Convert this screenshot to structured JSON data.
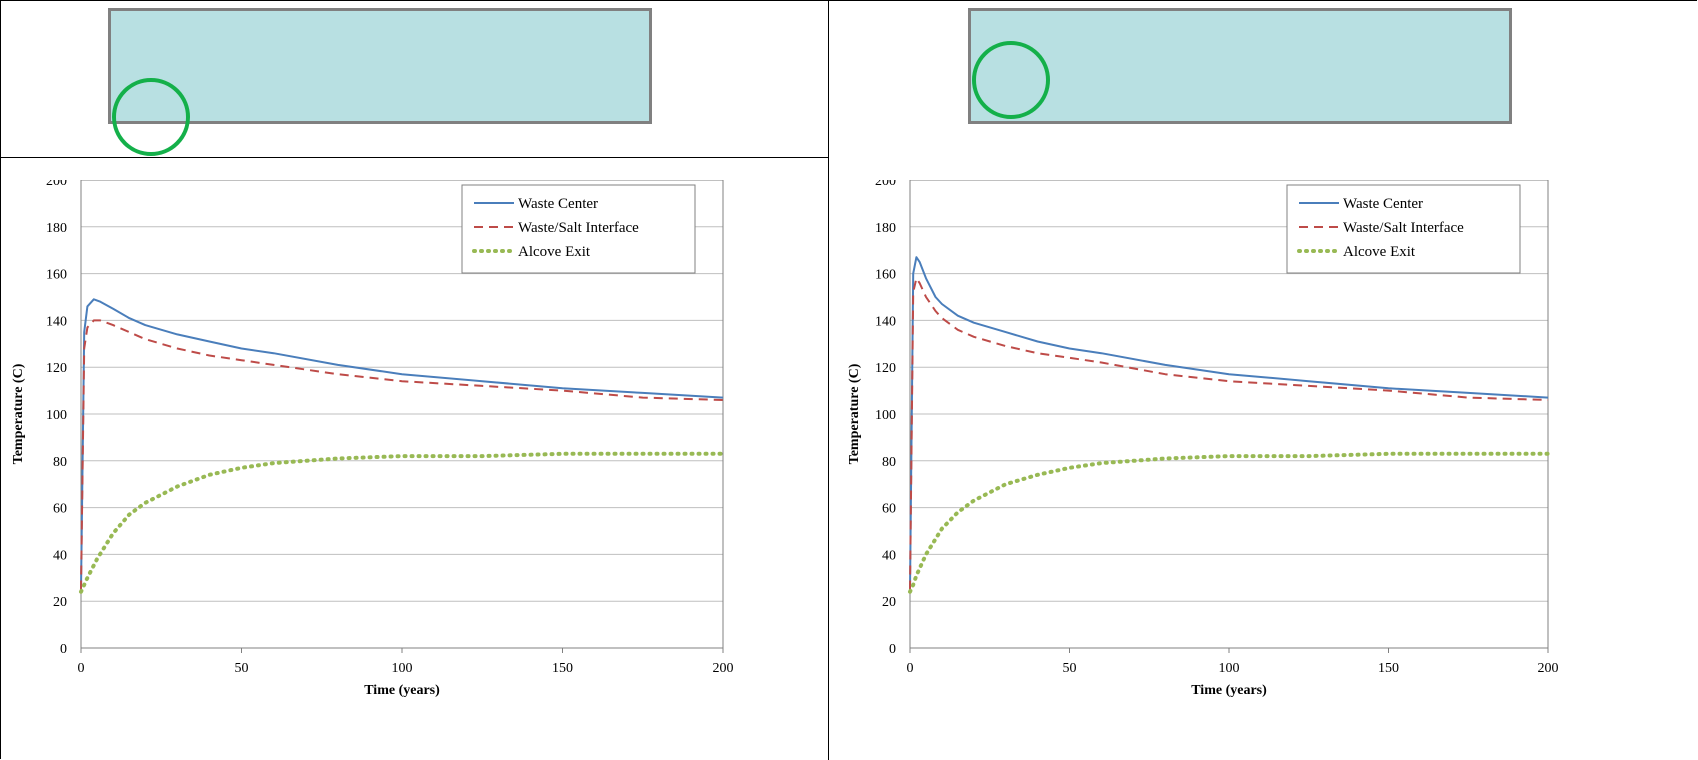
{
  "figure": {
    "colors": {
      "diagram_fill": "#b8e0e2",
      "diagram_border": "#808080",
      "marker": "#14b04a"
    }
  },
  "chart_data": [
    {
      "type": "line",
      "xlabel": "Time (years)",
      "ylabel": "Temperature (C)",
      "xlim": [
        0,
        200
      ],
      "ylim": [
        0,
        200
      ],
      "xticks": [
        0,
        50,
        100,
        150,
        200
      ],
      "yticks": [
        0,
        20,
        40,
        60,
        80,
        100,
        120,
        140,
        160,
        180,
        200
      ],
      "grid": "horizontal",
      "legend": "top-right",
      "series": [
        {
          "name": "Waste Center",
          "color": "#4a7ebb",
          "style": "solid",
          "x": [
            0,
            1,
            2,
            4,
            6,
            10,
            15,
            20,
            30,
            40,
            50,
            60,
            80,
            100,
            125,
            150,
            175,
            200
          ],
          "y": [
            25,
            135,
            146,
            149,
            148,
            145,
            141,
            138,
            134,
            131,
            128,
            126,
            121,
            117,
            114,
            111,
            109,
            107
          ]
        },
        {
          "name": "Waste/Salt Interface",
          "color": "#be4b48",
          "style": "dashed",
          "x": [
            0,
            1,
            2,
            4,
            6,
            10,
            15,
            20,
            30,
            40,
            50,
            60,
            80,
            100,
            125,
            150,
            175,
            200
          ],
          "y": [
            25,
            128,
            137,
            140,
            140,
            138,
            135,
            132,
            128,
            125,
            123,
            121,
            117,
            114,
            112,
            110,
            107,
            106
          ]
        },
        {
          "name": "Alcove Exit",
          "color": "#98b954",
          "style": "dotted",
          "x": [
            0,
            1,
            2,
            5,
            10,
            15,
            20,
            30,
            40,
            50,
            60,
            80,
            100,
            125,
            150,
            175,
            200
          ],
          "y": [
            24,
            27,
            30,
            38,
            49,
            57,
            62,
            69,
            74,
            77,
            79,
            81,
            82,
            82,
            83,
            83,
            83
          ]
        }
      ]
    },
    {
      "type": "line",
      "xlabel": "Time (years)",
      "ylabel": "Temperature (C)",
      "xlim": [
        0,
        200
      ],
      "ylim": [
        0,
        200
      ],
      "xticks": [
        0,
        50,
        100,
        150,
        200
      ],
      "yticks": [
        0,
        20,
        40,
        60,
        80,
        100,
        120,
        140,
        160,
        180,
        200
      ],
      "grid": "horizontal",
      "legend": "top-right",
      "series": [
        {
          "name": "Waste Center",
          "color": "#4a7ebb",
          "style": "solid",
          "x": [
            0,
            1,
            2,
            3,
            5,
            8,
            10,
            15,
            20,
            30,
            40,
            50,
            60,
            80,
            100,
            125,
            150,
            175,
            200
          ],
          "y": [
            25,
            160,
            167,
            165,
            158,
            150,
            147,
            142,
            139,
            135,
            131,
            128,
            126,
            121,
            117,
            114,
            111,
            109,
            107
          ]
        },
        {
          "name": "Waste/Salt Interface",
          "color": "#be4b48",
          "style": "dashed",
          "x": [
            0,
            1,
            2,
            3,
            5,
            8,
            10,
            15,
            20,
            30,
            40,
            50,
            60,
            80,
            100,
            125,
            150,
            175,
            200
          ],
          "y": [
            25,
            152,
            158,
            156,
            150,
            144,
            141,
            136,
            133,
            129,
            126,
            124,
            122,
            117,
            114,
            112,
            110,
            107,
            106
          ]
        },
        {
          "name": "Alcove Exit",
          "color": "#98b954",
          "style": "dotted",
          "x": [
            0,
            1,
            2,
            5,
            10,
            15,
            20,
            30,
            40,
            50,
            60,
            80,
            100,
            125,
            150,
            175,
            200
          ],
          "y": [
            24,
            27,
            31,
            40,
            51,
            58,
            63,
            70,
            74,
            77,
            79,
            81,
            82,
            82,
            83,
            83,
            83
          ]
        }
      ]
    }
  ]
}
